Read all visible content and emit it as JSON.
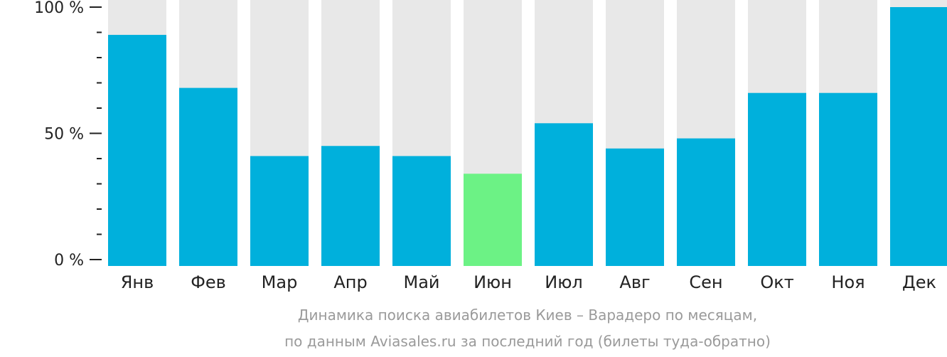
{
  "chart_data": {
    "type": "bar",
    "categories": [
      "Янв",
      "Фев",
      "Мар",
      "Апр",
      "Май",
      "Июн",
      "Июл",
      "Авг",
      "Сен",
      "Окт",
      "Ноя",
      "Дек"
    ],
    "values": [
      89,
      68,
      41,
      45,
      41,
      34,
      54,
      44,
      48,
      66,
      66,
      100
    ],
    "highlight_index": 5,
    "ylim": [
      0,
      100
    ],
    "y_ticks": [
      {
        "value": 0,
        "label": "0 %"
      },
      {
        "value": 50,
        "label": "50 %"
      },
      {
        "value": 100,
        "label": "100 %"
      }
    ],
    "y_minor_step": 10,
    "caption_lines": [
      "Динамика поиска авиабилетов Киев – Варадеро по месяцам,",
      "по данным Aviasales.ru за последний год (билеты туда-обратно)"
    ],
    "colors": {
      "bar": "#00b0dc",
      "highlight": "#6cf285",
      "track": "#e8e8e8",
      "axis": "#222222",
      "caption": "#9a9a9a"
    }
  }
}
